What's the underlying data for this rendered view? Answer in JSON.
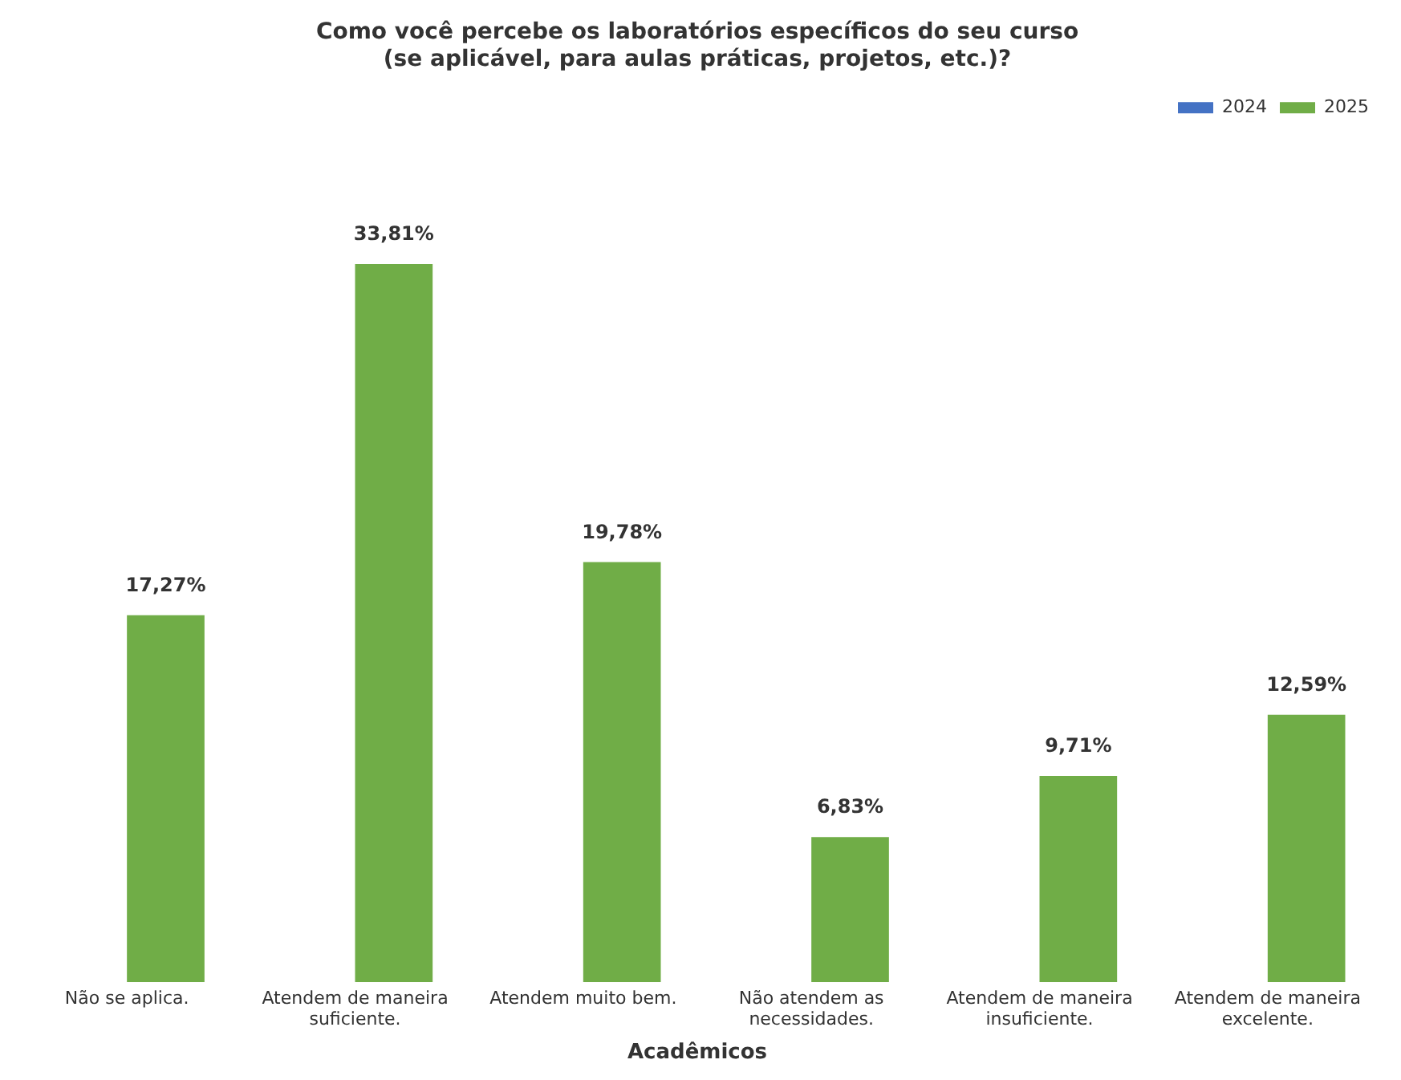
{
  "chart_data": {
    "type": "bar",
    "title": "Como você percebe os laboratórios específicos do seu curso\n(se aplicável, para aulas práticas, projetos, etc.)?",
    "xlabel": "Acadêmicos",
    "categories": [
      "Não se aplica.",
      "Atendem de maneira suficiente.",
      "Atendem muito bem.",
      "Não atendem as necessidades.",
      "Atendem de maneira insuficiente.",
      "Atendem de maneira excelente."
    ],
    "series": [
      {
        "name": "2024",
        "color": "#4472c4",
        "values": [
          null,
          null,
          null,
          null,
          null,
          null
        ]
      },
      {
        "name": "2025",
        "color": "#70ad47",
        "values": [
          17.27,
          33.81,
          19.78,
          6.83,
          9.71,
          12.59
        ],
        "value_labels": [
          "17,27%",
          "33,81%",
          "19,78%",
          "6,83%",
          "9,71%",
          "12,59%"
        ]
      }
    ],
    "legend": "top right",
    "grid": false
  }
}
